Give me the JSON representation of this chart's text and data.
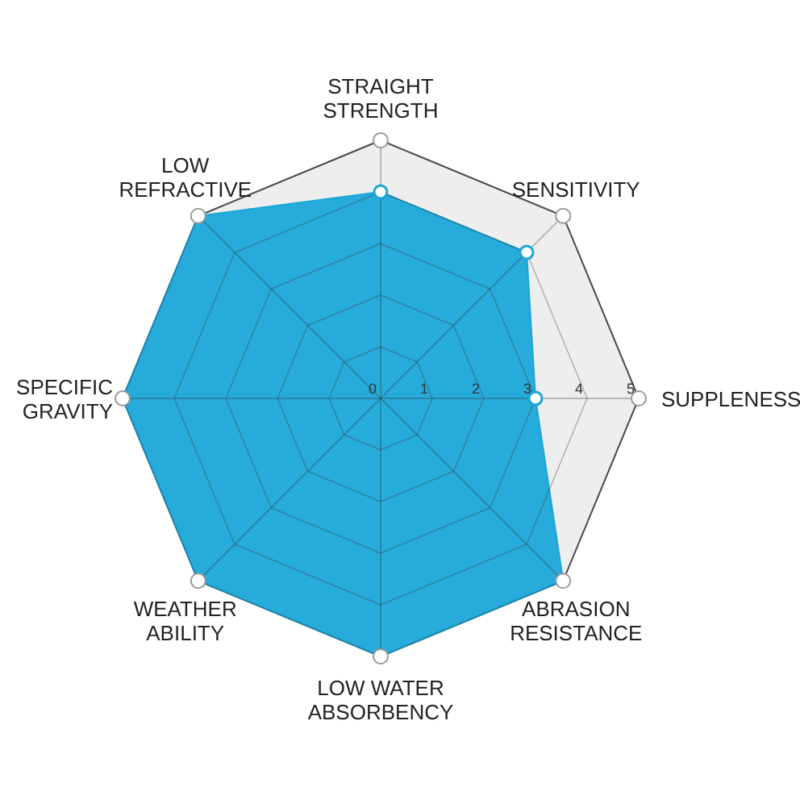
{
  "chart_data": {
    "type": "radar",
    "categories": [
      "STRAIGHT\nSTRENGTH",
      "SENSITIVITY",
      "SUPPLENESS",
      "ABRASION\nRESISTANCE",
      "LOW WATER\nABSORBENCY",
      "WEATHER\nABILITY",
      "SPECIFIC\nGRAVITY",
      "LOW\nREFRACTIVE"
    ],
    "series": [
      {
        "color": "#1ba6d8",
        "values": [
          4,
          4,
          3,
          5,
          5,
          5,
          5,
          5
        ]
      }
    ],
    "ylim": [
      0,
      5
    ],
    "yticks": [
      0,
      1,
      2,
      3,
      4,
      5
    ],
    "marker": "circle",
    "grid": true
  }
}
